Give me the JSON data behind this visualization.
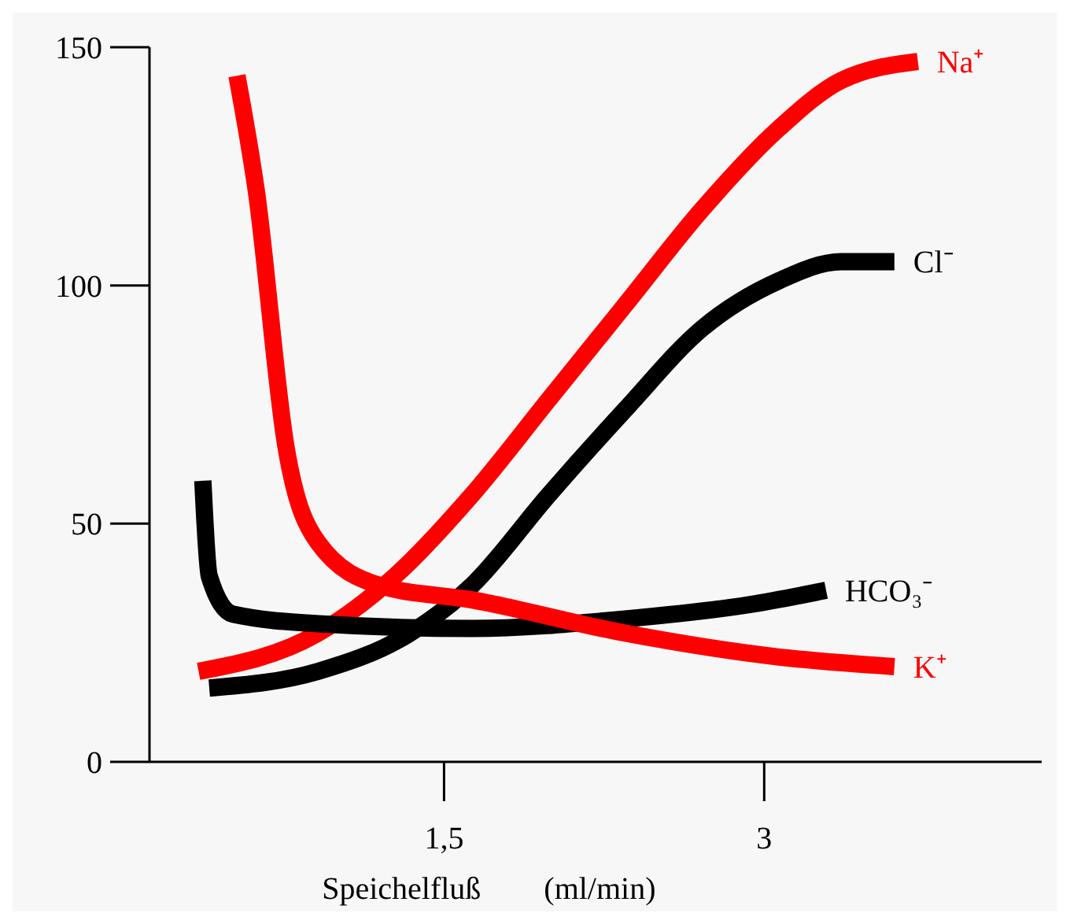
{
  "chart_data": {
    "type": "line",
    "xlabel": "Speichelfluß        (ml/min)",
    "xlim": [
      0.12,
      4.3
    ],
    "xticks": [
      {
        "value": 1.5,
        "label": "1,5"
      },
      3
    ],
    "ylim": [
      0,
      150
    ],
    "yticks": [
      0,
      50,
      100,
      150
    ],
    "grid": false,
    "line_style": "solid",
    "marker": "none",
    "series": [
      {
        "name": "Na⁺",
        "color": "#ff0000",
        "x": [
          0.35,
          0.91,
          1.27,
          1.63,
          1.99,
          2.35,
          2.71,
          3.07,
          3.36,
          3.72
        ],
        "values": [
          19,
          27,
          39,
          56,
          76,
          96,
          116,
          133,
          143,
          147
        ]
      },
      {
        "name": "Cl⁻",
        "color": "#000000",
        "x": [
          0.4,
          0.91,
          1.34,
          1.63,
          1.99,
          2.35,
          2.71,
          3.07,
          3.36,
          3.61
        ],
        "values": [
          15.5,
          19,
          27,
          37,
          56,
          74,
          91,
          101,
          105,
          105
        ]
      },
      {
        "name": "HCO₃⁻",
        "color": "#000000",
        "x": [
          0.37,
          0.4,
          0.51,
          0.91,
          1.63,
          2.35,
          2.93,
          3.29
        ],
        "values": [
          59,
          39,
          31,
          29,
          28,
          30,
          33,
          36
        ]
      },
      {
        "name": "K⁺",
        "color": "#ff0000",
        "x": [
          0.53,
          0.62,
          0.76,
          0.91,
          1.2,
          1.63,
          2.35,
          3.07,
          3.61
        ],
        "values": [
          144,
          120,
          66,
          46,
          37,
          34,
          27,
          22,
          20
        ]
      }
    ]
  }
}
